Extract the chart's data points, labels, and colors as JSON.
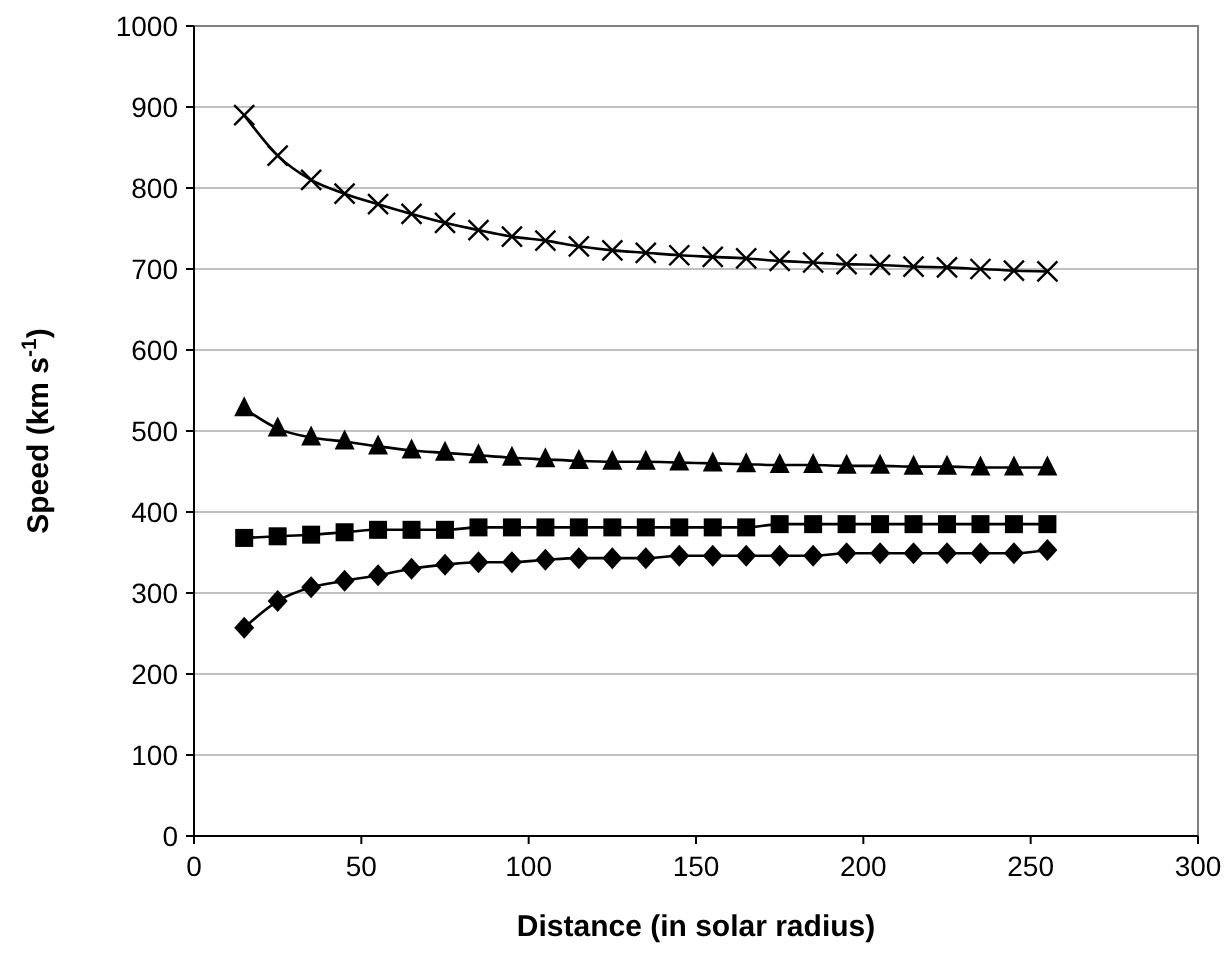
{
  "chart_data": {
    "type": "line",
    "xlabel": "Distance (in solar radius)",
    "ylabel": "Speed (km s$^{-1}$)",
    "x": [
      15,
      25,
      35,
      45,
      55,
      65,
      75,
      85,
      95,
      105,
      115,
      125,
      135,
      145,
      155,
      165,
      175,
      185,
      195,
      205,
      215,
      225,
      235,
      245,
      255
    ],
    "xlim": [
      0,
      300
    ],
    "xticks": [
      0,
      50,
      100,
      150,
      200,
      250,
      300
    ],
    "ylim": [
      0,
      1000
    ],
    "yticks": [
      0,
      100,
      200,
      300,
      400,
      500,
      600,
      700,
      800,
      900,
      1000
    ],
    "grid": "y",
    "series": [
      {
        "color": "#000000",
        "marker": "cross",
        "values": [
          890,
          840,
          810,
          793,
          780,
          768,
          757,
          748,
          740,
          735,
          728,
          723,
          720,
          717,
          715,
          713,
          710,
          708,
          706,
          705,
          703,
          702,
          700,
          698,
          697
        ]
      },
      {
        "color": "#000000",
        "marker": "triangle",
        "values": [
          528,
          503,
          492,
          487,
          481,
          476,
          473,
          470,
          467,
          465,
          463,
          462,
          462,
          461,
          460,
          459,
          458,
          458,
          457,
          457,
          456,
          456,
          455,
          455,
          455
        ]
      },
      {
        "color": "#000000",
        "marker": "square",
        "values": [
          368,
          370,
          372,
          375,
          378,
          378,
          378,
          381,
          381,
          381,
          381,
          381,
          381,
          381,
          381,
          381,
          385,
          385,
          385,
          385,
          385,
          385,
          385,
          385,
          385
        ]
      },
      {
        "color": "#000000",
        "marker": "diamond",
        "values": [
          257,
          290,
          307,
          315,
          322,
          330,
          335,
          338,
          338,
          341,
          343,
          343,
          343,
          346,
          346,
          346,
          346,
          346,
          349,
          349,
          349,
          349,
          349,
          349,
          353
        ]
      }
    ]
  }
}
